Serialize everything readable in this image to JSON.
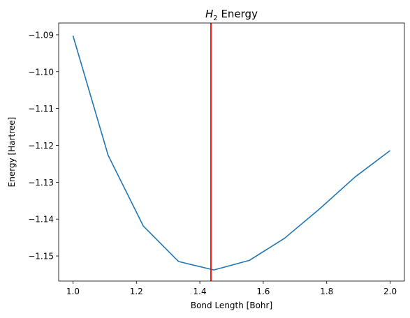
{
  "chart_data": {
    "type": "line",
    "title": {
      "prefix": "H",
      "subscript": "2",
      "suffix": " Energy"
    },
    "xlabel": "Bond Length [Bohr]",
    "ylabel": "Energy [Hartree]",
    "xlim": [
      0.955,
      2.045
    ],
    "ylim": [
      -1.1568,
      -1.0868
    ],
    "xticks": [
      1.0,
      1.2,
      1.4,
      1.6,
      1.8,
      2.0
    ],
    "xtick_labels": [
      "1.0",
      "1.2",
      "1.4",
      "1.6",
      "1.8",
      "2.0"
    ],
    "yticks": [
      -1.15,
      -1.14,
      -1.13,
      -1.12,
      -1.11,
      -1.1,
      -1.09
    ],
    "ytick_labels": [
      "−1.15",
      "−1.14",
      "−1.13",
      "−1.12",
      "−1.11",
      "−1.10",
      "−1.09"
    ],
    "grid": false,
    "series": [
      {
        "color": "#1f77b4",
        "x": [
          1.0,
          1.111,
          1.222,
          1.333,
          1.444,
          1.556,
          1.667,
          1.778,
          1.889,
          2.0
        ],
        "y": [
          -1.0902,
          -1.1227,
          -1.1419,
          -1.1515,
          -1.1538,
          -1.1512,
          -1.1452,
          -1.1372,
          -1.1286,
          -1.1214
        ]
      }
    ],
    "vertical_line": {
      "x": 1.435,
      "color": "#ff0000"
    }
  }
}
